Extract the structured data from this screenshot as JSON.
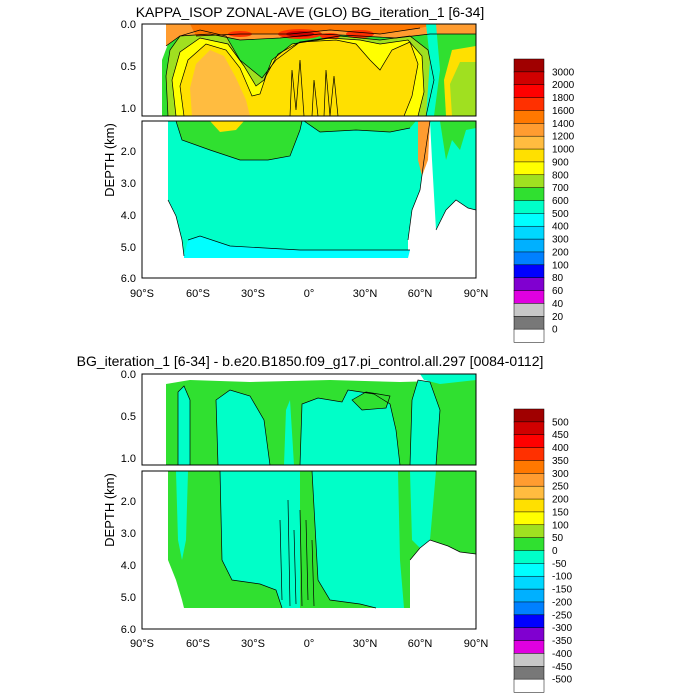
{
  "chart_data": [
    {
      "type": "heatmap",
      "title": "KAPPA_ISOP ZONAL-AVE (GLO) BG_iteration_1 [6-34]",
      "ylabel": "DEPTH (km)",
      "x_ticks": [
        "90°S",
        "60°S",
        "30°S",
        "0°",
        "30°N",
        "60°N",
        "90°N"
      ],
      "y_ticks_upper": [
        "0.0",
        "0.5",
        "1.0"
      ],
      "y_ticks_lower": [
        "2.0",
        "3.0",
        "4.0",
        "5.0",
        "6.0"
      ],
      "xlim": [
        -90,
        90
      ],
      "ylim_upper": [
        0,
        1.1
      ],
      "ylim_lower": [
        1.2,
        6
      ],
      "colorbar_levels": [
        "3000",
        "2000",
        "1800",
        "1600",
        "1400",
        "1200",
        "1000",
        "900",
        "800",
        "700",
        "600",
        "500",
        "400",
        "300",
        "200",
        "100",
        "80",
        "60",
        "40",
        "20",
        "0"
      ],
      "colorbar_colors": [
        "#a00000",
        "#d00000",
        "#ff0000",
        "#ff3000",
        "#ff7800",
        "#ff9c30",
        "#ffbc40",
        "#ffe000",
        "#ffff00",
        "#a0e020",
        "#30e030",
        "#00ffc8",
        "#00ffff",
        "#00d8ff",
        "#00b0ff",
        "#0080ff",
        "#0000ff",
        "#8000d0",
        "#e000e0",
        "#c8c8c8",
        "#787878",
        "#ffffff"
      ]
    },
    {
      "type": "heatmap",
      "title": "BG_iteration_1 [6-34] - b.e20.B1850.f09_g17.pi_control.all.297 [0084-0112]",
      "ylabel": "DEPTH (km)",
      "x_ticks": [
        "90°S",
        "60°S",
        "30°S",
        "0°",
        "30°N",
        "60°N",
        "90°N"
      ],
      "y_ticks_upper": [
        "0.0",
        "0.5",
        "1.0"
      ],
      "y_ticks_lower": [
        "2.0",
        "3.0",
        "4.0",
        "5.0",
        "6.0"
      ],
      "xlim": [
        -90,
        90
      ],
      "ylim_upper": [
        0,
        1.1
      ],
      "ylim_lower": [
        1.2,
        6
      ],
      "colorbar_levels": [
        "500",
        "450",
        "400",
        "350",
        "300",
        "250",
        "200",
        "150",
        "100",
        "50",
        "0",
        "-50",
        "-100",
        "-150",
        "-200",
        "-250",
        "-300",
        "-350",
        "-400",
        "-450",
        "-500"
      ],
      "colorbar_colors": [
        "#a00000",
        "#d00000",
        "#ff0000",
        "#ff3000",
        "#ff7800",
        "#ff9c30",
        "#ffbc40",
        "#ffe000",
        "#ffff00",
        "#a0e020",
        "#30e030",
        "#00ffc8",
        "#00ffff",
        "#00d8ff",
        "#00b0ff",
        "#0080ff",
        "#0000ff",
        "#8000d0",
        "#e000e0",
        "#c8c8c8",
        "#787878",
        "#ffffff"
      ]
    }
  ]
}
